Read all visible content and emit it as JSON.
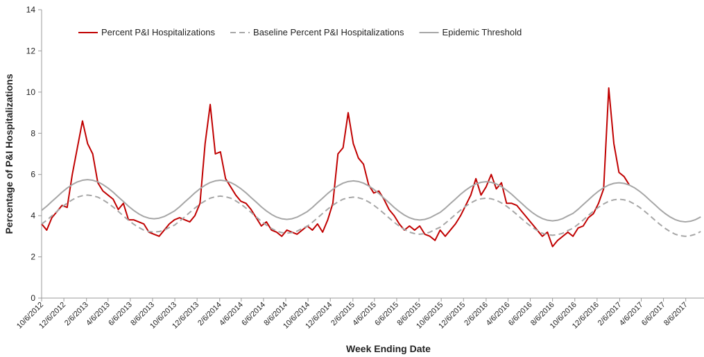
{
  "chart_data": {
    "type": "line",
    "x_label": "Week Ending Date",
    "y_label": "Percentage of P&I Hospitalizations",
    "x": [
      "10/6/2012",
      "10/20/2012",
      "11/3/2012",
      "11/17/2012",
      "12/1/2012",
      "12/15/2012",
      "12/29/2012",
      "1/12/2013",
      "1/26/2013",
      "2/9/2013",
      "2/23/2013",
      "3/9/2013",
      "3/23/2013",
      "4/6/2013",
      "4/20/2013",
      "5/4/2013",
      "5/18/2013",
      "6/1/2013",
      "6/15/2013",
      "6/29/2013",
      "7/13/2013",
      "7/27/2013",
      "8/10/2013",
      "8/24/2013",
      "9/7/2013",
      "9/21/2013",
      "10/5/2013",
      "10/19/2013",
      "11/2/2013",
      "11/16/2013",
      "11/30/2013",
      "12/14/2013",
      "12/28/2013",
      "1/11/2014",
      "1/25/2014",
      "2/8/2014",
      "2/22/2014",
      "3/8/2014",
      "3/22/2014",
      "4/5/2014",
      "4/19/2014",
      "5/3/2014",
      "5/17/2014",
      "5/31/2014",
      "6/14/2014",
      "6/28/2014",
      "7/12/2014",
      "7/26/2014",
      "8/9/2014",
      "8/23/2014",
      "9/6/2014",
      "9/20/2014",
      "10/4/2014",
      "10/18/2014",
      "11/1/2014",
      "11/15/2014",
      "11/29/2014",
      "12/13/2014",
      "12/27/2014",
      "1/10/2015",
      "1/24/2015",
      "2/7/2015",
      "2/21/2015",
      "3/7/2015",
      "3/21/2015",
      "4/4/2015",
      "4/18/2015",
      "5/2/2015",
      "5/16/2015",
      "5/30/2015",
      "6/13/2015",
      "6/27/2015",
      "7/11/2015",
      "7/25/2015",
      "8/8/2015",
      "8/22/2015",
      "9/5/2015",
      "9/19/2015",
      "10/3/2015",
      "10/17/2015",
      "10/31/2015",
      "11/14/2015",
      "11/28/2015",
      "12/12/2015",
      "12/26/2015",
      "1/9/2016",
      "1/23/2016",
      "2/6/2016",
      "2/20/2016",
      "3/5/2016",
      "3/19/2016",
      "4/2/2016",
      "4/16/2016",
      "4/30/2016",
      "5/14/2016",
      "5/28/2016",
      "6/11/2016",
      "6/25/2016",
      "7/9/2016",
      "7/23/2016",
      "8/6/2016",
      "8/20/2016",
      "9/3/2016",
      "9/17/2016",
      "10/1/2016",
      "10/15/2016",
      "10/29/2016",
      "11/12/2016",
      "11/26/2016",
      "12/10/2016",
      "12/24/2016",
      "1/7/2017",
      "1/21/2017",
      "2/4/2017",
      "2/18/2017",
      "3/4/2017",
      "3/18/2017",
      "4/1/2017",
      "4/15/2017",
      "4/29/2017",
      "5/13/2017",
      "5/27/2017",
      "6/10/2017",
      "6/24/2017",
      "7/8/2017",
      "7/22/2017",
      "8/5/2017",
      "8/19/2017",
      "9/2/2017",
      "9/16/2017"
    ],
    "series": [
      {
        "name": "Percent P&I Hospitalizations",
        "color": "#c00000",
        "style": "solid",
        "values": [
          3.6,
          3.3,
          3.9,
          4.2,
          4.5,
          4.4,
          6.0,
          7.3,
          8.6,
          7.5,
          7.0,
          5.6,
          5.2,
          5.0,
          4.8,
          4.3,
          4.6,
          3.8,
          3.8,
          3.7,
          3.6,
          3.2,
          3.1,
          3.0,
          3.3,
          3.6,
          3.8,
          3.9,
          3.8,
          3.7,
          4.0,
          4.6,
          7.5,
          9.4,
          7.0,
          7.1,
          5.8,
          5.4,
          5.0,
          4.7,
          4.6,
          4.3,
          3.9,
          3.5,
          3.7,
          3.3,
          3.2,
          3.0,
          3.3,
          3.2,
          3.1,
          3.3,
          3.5,
          3.3,
          3.6,
          3.2,
          3.8,
          4.6,
          7.0,
          7.3,
          9.0,
          7.5,
          6.8,
          6.5,
          5.5,
          5.1,
          5.2,
          4.8,
          4.3,
          4.0,
          3.6,
          3.3,
          3.5,
          3.3,
          3.5,
          3.1,
          3.0,
          2.8,
          3.3,
          3.0,
          3.3,
          3.6,
          4.0,
          4.5,
          5.0,
          5.8,
          5.0,
          5.4,
          6.0,
          5.3,
          5.6,
          4.6,
          4.6,
          4.5,
          4.2,
          3.9,
          3.6,
          3.3,
          3.0,
          3.2,
          2.5,
          2.8,
          3.0,
          3.2,
          3.0,
          3.4,
          3.5,
          3.9,
          4.1,
          4.6,
          5.3,
          10.2,
          7.5,
          6.1,
          5.9,
          5.5,
          null,
          null,
          null,
          null,
          null,
          null,
          null,
          null,
          null,
          null,
          null,
          null,
          null,
          null
        ]
      },
      {
        "name": "Baseline Percent P&I Hospitalizations",
        "color": "#a6a6a6",
        "style": "dashed",
        "values": [
          3.59,
          3.78,
          3.99,
          4.21,
          4.42,
          4.61,
          4.77,
          4.9,
          4.97,
          5.0,
          4.97,
          4.9,
          4.77,
          4.61,
          4.42,
          4.21,
          3.99,
          3.78,
          3.59,
          3.43,
          3.3,
          3.23,
          3.2,
          3.23,
          3.3,
          3.43,
          3.54,
          3.73,
          3.94,
          4.16,
          4.37,
          4.56,
          4.72,
          4.85,
          4.92,
          4.95,
          4.92,
          4.85,
          4.72,
          4.56,
          4.37,
          4.16,
          3.94,
          3.73,
          3.54,
          3.38,
          3.25,
          3.18,
          3.15,
          3.18,
          3.25,
          3.38,
          3.49,
          3.68,
          3.89,
          4.11,
          4.32,
          4.51,
          4.67,
          4.8,
          4.87,
          4.9,
          4.87,
          4.8,
          4.67,
          4.51,
          4.32,
          4.11,
          3.89,
          3.68,
          3.49,
          3.33,
          3.2,
          3.13,
          3.1,
          3.13,
          3.2,
          3.33,
          3.44,
          3.63,
          3.84,
          4.06,
          4.27,
          4.46,
          4.62,
          4.75,
          4.82,
          4.85,
          4.82,
          4.75,
          4.62,
          4.46,
          4.27,
          4.06,
          3.84,
          3.63,
          3.44,
          3.28,
          3.15,
          3.08,
          3.05,
          3.08,
          3.15,
          3.28,
          3.39,
          3.58,
          3.79,
          4.01,
          4.22,
          4.41,
          4.57,
          4.7,
          4.77,
          4.8,
          4.77,
          4.7,
          4.57,
          4.41,
          4.22,
          4.01,
          3.79,
          3.58,
          3.39,
          3.23,
          3.1,
          3.03,
          3.0,
          3.03,
          3.1,
          3.23
        ]
      },
      {
        "name": "Epidemic Threshold",
        "color": "#a6a6a6",
        "style": "solid",
        "values": [
          4.26,
          4.46,
          4.69,
          4.91,
          5.14,
          5.34,
          5.51,
          5.64,
          5.72,
          5.75,
          5.72,
          5.64,
          5.51,
          5.34,
          5.14,
          4.91,
          4.69,
          4.46,
          4.26,
          4.09,
          3.96,
          3.88,
          3.85,
          3.88,
          3.96,
          4.09,
          4.23,
          4.43,
          4.66,
          4.88,
          5.11,
          5.31,
          5.48,
          5.61,
          5.69,
          5.72,
          5.69,
          5.61,
          5.48,
          5.31,
          5.11,
          4.88,
          4.66,
          4.43,
          4.23,
          4.06,
          3.93,
          3.85,
          3.82,
          3.85,
          3.93,
          4.06,
          4.2,
          4.4,
          4.63,
          4.85,
          5.08,
          5.28,
          5.45,
          5.58,
          5.66,
          5.69,
          5.66,
          5.58,
          5.45,
          5.28,
          5.08,
          4.85,
          4.63,
          4.4,
          4.2,
          4.03,
          3.9,
          3.82,
          3.79,
          3.82,
          3.9,
          4.03,
          4.16,
          4.36,
          4.59,
          4.81,
          5.04,
          5.24,
          5.41,
          5.54,
          5.62,
          5.65,
          5.62,
          5.54,
          5.41,
          5.24,
          5.04,
          4.81,
          4.59,
          4.36,
          4.16,
          3.99,
          3.86,
          3.78,
          3.75,
          3.78,
          3.86,
          3.99,
          4.11,
          4.31,
          4.54,
          4.76,
          4.99,
          5.19,
          5.36,
          5.49,
          5.57,
          5.6,
          5.57,
          5.49,
          5.36,
          5.19,
          4.99,
          4.76,
          4.54,
          4.31,
          4.11,
          3.94,
          3.81,
          3.73,
          3.7,
          3.73,
          3.81,
          3.94
        ]
      }
    ],
    "xlim": [
      "10/6/2012",
      "9/25/2017"
    ],
    "xticks": [
      "10/6/2012",
      "12/6/2012",
      "2/6/2013",
      "4/6/2013",
      "6/6/2013",
      "8/6/2013",
      "10/6/2013",
      "12/6/2013",
      "2/6/2014",
      "4/6/2014",
      "6/6/2014",
      "8/6/2014",
      "10/6/2014",
      "12/6/2014",
      "2/6/2015",
      "4/6/2015",
      "6/6/2015",
      "8/6/2015",
      "10/6/2015",
      "12/6/2015",
      "2/6/2016",
      "4/6/2016",
      "6/6/2016",
      "8/6/2016",
      "10/6/2016",
      "12/6/2016",
      "2/6/2017",
      "4/6/2017",
      "6/6/2017",
      "8/6/2017"
    ],
    "ylim": [
      0,
      14
    ],
    "yticks": [
      0,
      2,
      4,
      6,
      8,
      10,
      12,
      14
    ],
    "grid": false,
    "legend": "top"
  }
}
